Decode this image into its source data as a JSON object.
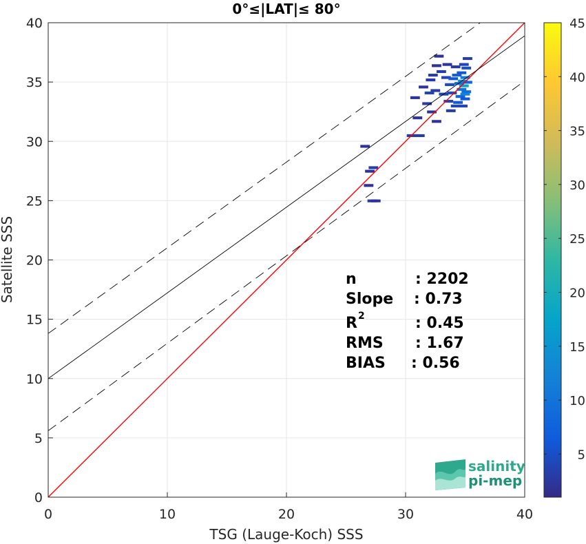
{
  "chart_data": {
    "type": "heatmap",
    "title": "0°≤|LAT|≤ 80°",
    "xlabel": "TSG (Lauge-Koch) SSS",
    "ylabel": "Satellite SSS",
    "xlim": [
      0,
      40
    ],
    "ylim": [
      0,
      40
    ],
    "xticks": [
      0,
      10,
      20,
      30,
      40
    ],
    "yticks": [
      0,
      5,
      10,
      15,
      20,
      25,
      30,
      35,
      40
    ],
    "grid": true,
    "colorbar": {
      "range": [
        1,
        45
      ],
      "ticks": [
        5,
        10,
        15,
        20,
        25,
        30,
        35,
        40,
        45
      ],
      "colormap": "parula",
      "colors": [
        "#352a87",
        "#0f5cdd",
        "#1481d6",
        "#06a4ca",
        "#2eb7a4",
        "#87bf77",
        "#d1bb59",
        "#fec832",
        "#f9fb0e"
      ]
    },
    "lines": [
      {
        "name": "one-to-one",
        "color": "#ff0000",
        "x": [
          0,
          40
        ],
        "y": [
          0,
          40
        ]
      },
      {
        "name": "regression",
        "color": "#000000",
        "x": [
          0,
          40
        ],
        "y": [
          10.0,
          38.9
        ]
      },
      {
        "name": "upper-bound",
        "color": "#000000",
        "dash": true,
        "x": [
          0,
          40
        ],
        "y": [
          13.8,
          42.7
        ]
      },
      {
        "name": "lower-bound",
        "color": "#000000",
        "dash": true,
        "x": [
          0,
          40
        ],
        "y": [
          5.6,
          35.1
        ]
      }
    ],
    "density_points": [
      {
        "x": 27.3,
        "y": 27.8,
        "c": 3
      },
      {
        "x": 27.0,
        "y": 27.5,
        "c": 2
      },
      {
        "x": 26.9,
        "y": 26.3,
        "c": 2
      },
      {
        "x": 27.2,
        "y": 25.0,
        "c": 3
      },
      {
        "x": 26.6,
        "y": 29.6,
        "c": 2
      },
      {
        "x": 27.5,
        "y": 25.0,
        "c": 2
      },
      {
        "x": 30.5,
        "y": 30.5,
        "c": 3
      },
      {
        "x": 31.2,
        "y": 30.5,
        "c": 3
      },
      {
        "x": 30.8,
        "y": 33.7,
        "c": 2
      },
      {
        "x": 31.0,
        "y": 32.0,
        "c": 2
      },
      {
        "x": 31.8,
        "y": 33.2,
        "c": 3
      },
      {
        "x": 32.2,
        "y": 32.5,
        "c": 2
      },
      {
        "x": 32.6,
        "y": 31.7,
        "c": 2
      },
      {
        "x": 32.0,
        "y": 34.1,
        "c": 4
      },
      {
        "x": 32.5,
        "y": 34.3,
        "c": 3
      },
      {
        "x": 32.3,
        "y": 35.6,
        "c": 3
      },
      {
        "x": 32.6,
        "y": 36.4,
        "c": 2
      },
      {
        "x": 32.8,
        "y": 37.2,
        "c": 2
      },
      {
        "x": 32.1,
        "y": 35.2,
        "c": 3
      },
      {
        "x": 33.0,
        "y": 35.9,
        "c": 3
      },
      {
        "x": 33.4,
        "y": 35.4,
        "c": 4
      },
      {
        "x": 33.7,
        "y": 34.8,
        "c": 5
      },
      {
        "x": 33.9,
        "y": 34.1,
        "c": 5
      },
      {
        "x": 33.6,
        "y": 33.4,
        "c": 4
      },
      {
        "x": 34.2,
        "y": 33.0,
        "c": 4
      },
      {
        "x": 34.0,
        "y": 35.3,
        "c": 6
      },
      {
        "x": 34.3,
        "y": 35.6,
        "c": 7
      },
      {
        "x": 34.5,
        "y": 34.9,
        "c": 9
      },
      {
        "x": 34.7,
        "y": 34.4,
        "c": 10
      },
      {
        "x": 34.8,
        "y": 35.1,
        "c": 14
      },
      {
        "x": 34.9,
        "y": 34.7,
        "c": 18
      },
      {
        "x": 35.0,
        "y": 35.4,
        "c": 11
      },
      {
        "x": 35.1,
        "y": 34.2,
        "c": 9
      },
      {
        "x": 34.6,
        "y": 33.8,
        "c": 8
      },
      {
        "x": 34.4,
        "y": 33.3,
        "c": 6
      },
      {
        "x": 35.0,
        "y": 33.6,
        "c": 6
      },
      {
        "x": 35.1,
        "y": 36.2,
        "c": 5
      },
      {
        "x": 35.2,
        "y": 37.0,
        "c": 3
      },
      {
        "x": 34.9,
        "y": 36.5,
        "c": 4
      },
      {
        "x": 34.7,
        "y": 35.8,
        "c": 6
      },
      {
        "x": 34.2,
        "y": 36.3,
        "c": 3
      },
      {
        "x": 33.5,
        "y": 36.5,
        "c": 2
      },
      {
        "x": 35.0,
        "y": 34.0,
        "c": 12
      },
      {
        "x": 34.8,
        "y": 33.0,
        "c": 4
      },
      {
        "x": 35.2,
        "y": 35.0,
        "c": 8
      },
      {
        "x": 33.8,
        "y": 32.6,
        "c": 3
      },
      {
        "x": 31.5,
        "y": 34.6,
        "c": 2
      },
      {
        "x": 33.2,
        "y": 34.0,
        "c": 4
      }
    ],
    "stats": {
      "labels": [
        "n",
        "Slope",
        "R",
        "RMS",
        "BIAS"
      ],
      "superscript": "2",
      "values": [
        ": 2202",
        ": 0.73",
        ": 0.45",
        ": 1.67",
        ": 0.56"
      ]
    }
  },
  "logo": {
    "line1": "salinity",
    "line2": "pi-mep"
  }
}
